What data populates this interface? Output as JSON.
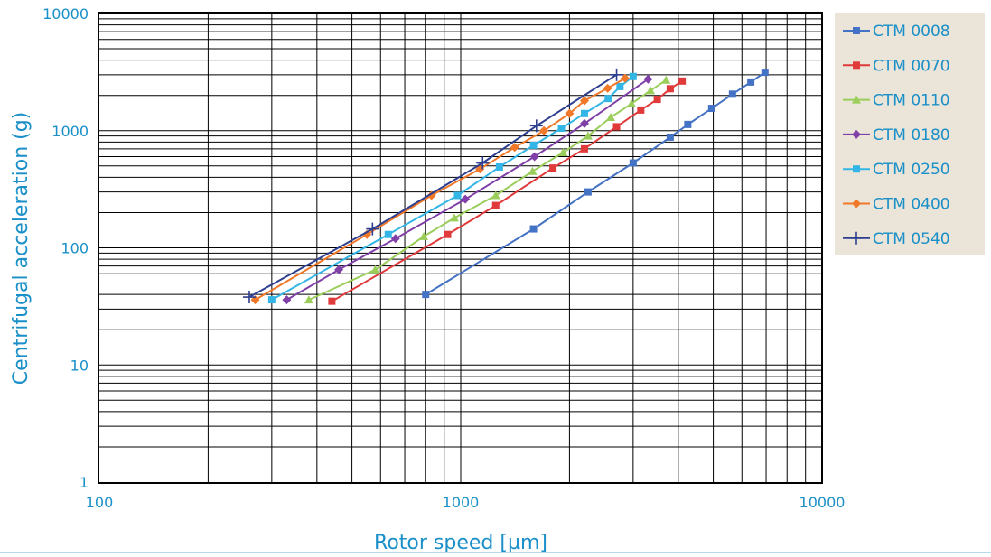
{
  "chart_data": {
    "type": "line",
    "title": "",
    "xlabel": "Rotor speed [µm]",
    "ylabel": "Centrifugal acceleration (g)",
    "xscale": "log",
    "yscale": "log",
    "xlim": [
      100,
      10000
    ],
    "ylim": [
      1,
      10000
    ],
    "grid": true,
    "legend_position": "right",
    "x_tick_labels": [
      "100",
      "1000",
      "10000"
    ],
    "y_tick_labels": [
      "1",
      "10",
      "100",
      "1000",
      "10000"
    ],
    "series": [
      {
        "name": "CTM 0008",
        "color": "#4472c4",
        "marker": "square",
        "x": [
          800,
          1590,
          2250,
          3000,
          3800,
          4250,
          4950,
          5650,
          6350,
          6950
        ],
        "y": [
          40,
          145,
          300,
          530,
          880,
          1130,
          1550,
          2050,
          2600,
          3150
        ]
      },
      {
        "name": "CTM 0070",
        "color": "#e03a3a",
        "marker": "square",
        "x": [
          440,
          920,
          1250,
          1800,
          2200,
          2700,
          3150,
          3500,
          3800,
          4100
        ],
        "y": [
          35,
          130,
          230,
          480,
          700,
          1080,
          1500,
          1850,
          2280,
          2650
        ]
      },
      {
        "name": "CTM 0110",
        "color": "#9acd5a",
        "marker": "triangle",
        "x": [
          380,
          580,
          790,
          960,
          1250,
          1580,
          1920,
          2250,
          2600,
          2970,
          3350,
          3700
        ],
        "y": [
          36,
          65,
          125,
          180,
          280,
          450,
          650,
          900,
          1300,
          1700,
          2200,
          2700
        ]
      },
      {
        "name": "CTM 0180",
        "color": "#8040a8",
        "marker": "diamond",
        "x": [
          330,
          460,
          660,
          1030,
          1600,
          2200,
          3300
        ],
        "y": [
          36,
          65,
          120,
          260,
          600,
          1150,
          2750
        ]
      },
      {
        "name": "CTM 0250",
        "color": "#33b5e5",
        "marker": "square",
        "x": [
          300,
          630,
          980,
          1280,
          1590,
          1900,
          2200,
          2560,
          2760,
          3000
        ],
        "y": [
          36,
          130,
          280,
          490,
          750,
          1050,
          1400,
          1880,
          2380,
          2900
        ]
      },
      {
        "name": "CTM 0400",
        "color": "#f07828",
        "marker": "diamond",
        "x": [
          270,
          550,
          830,
          1130,
          1410,
          1700,
          2000,
          2200,
          2550,
          2850
        ],
        "y": [
          36,
          130,
          280,
          470,
          720,
          1000,
          1400,
          1800,
          2300,
          2800
        ]
      },
      {
        "name": "CTM 0540",
        "color": "#2e3f8f",
        "marker": "cross",
        "x": [
          260,
          570,
          1150,
          1620,
          2700
        ],
        "y": [
          38,
          145,
          530,
          1100,
          3000
        ]
      }
    ]
  }
}
